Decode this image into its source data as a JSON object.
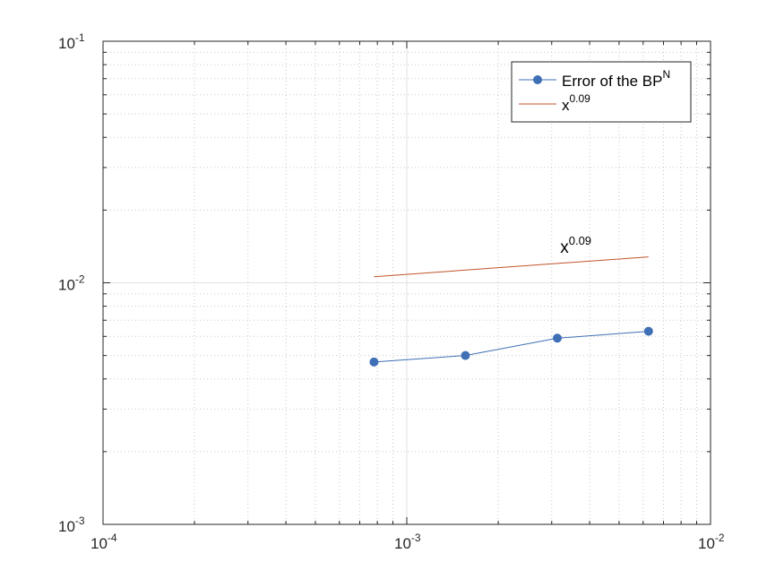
{
  "chart_data": {
    "type": "line",
    "xscale": "log",
    "yscale": "log",
    "xlim": [
      0.0001,
      0.01
    ],
    "ylim": [
      0.001,
      0.1
    ],
    "grid": true,
    "minor_grid": true,
    "x_ticks": [
      {
        "value": 0.0001,
        "base": "10",
        "exp": "-4"
      },
      {
        "value": 0.001,
        "base": "10",
        "exp": "-3"
      },
      {
        "value": 0.01,
        "base": "10",
        "exp": "-2"
      }
    ],
    "y_ticks": [
      {
        "value": 0.001,
        "base": "10",
        "exp": "-3"
      },
      {
        "value": 0.01,
        "base": "10",
        "exp": "-2"
      },
      {
        "value": 0.1,
        "base": "10",
        "exp": "-1"
      }
    ],
    "series": [
      {
        "name": "Error of the BP",
        "name_sup": "N",
        "color": "#3f6fb5",
        "marker": "circle",
        "x": [
          0.00078,
          0.00156,
          0.00313,
          0.00625
        ],
        "y": [
          0.0047,
          0.005,
          0.0059,
          0.0063
        ]
      },
      {
        "name": "x",
        "name_sup": "0.09",
        "color": "#c1532b",
        "marker": "none",
        "x": [
          0.00078,
          0.00625
        ],
        "y": [
          0.0106,
          0.0128
        ]
      }
    ],
    "annotations": [
      {
        "text": "x",
        "sup": "0.09",
        "x": 0.0032,
        "y": 0.0133
      }
    ],
    "legend_position": "top-right"
  }
}
